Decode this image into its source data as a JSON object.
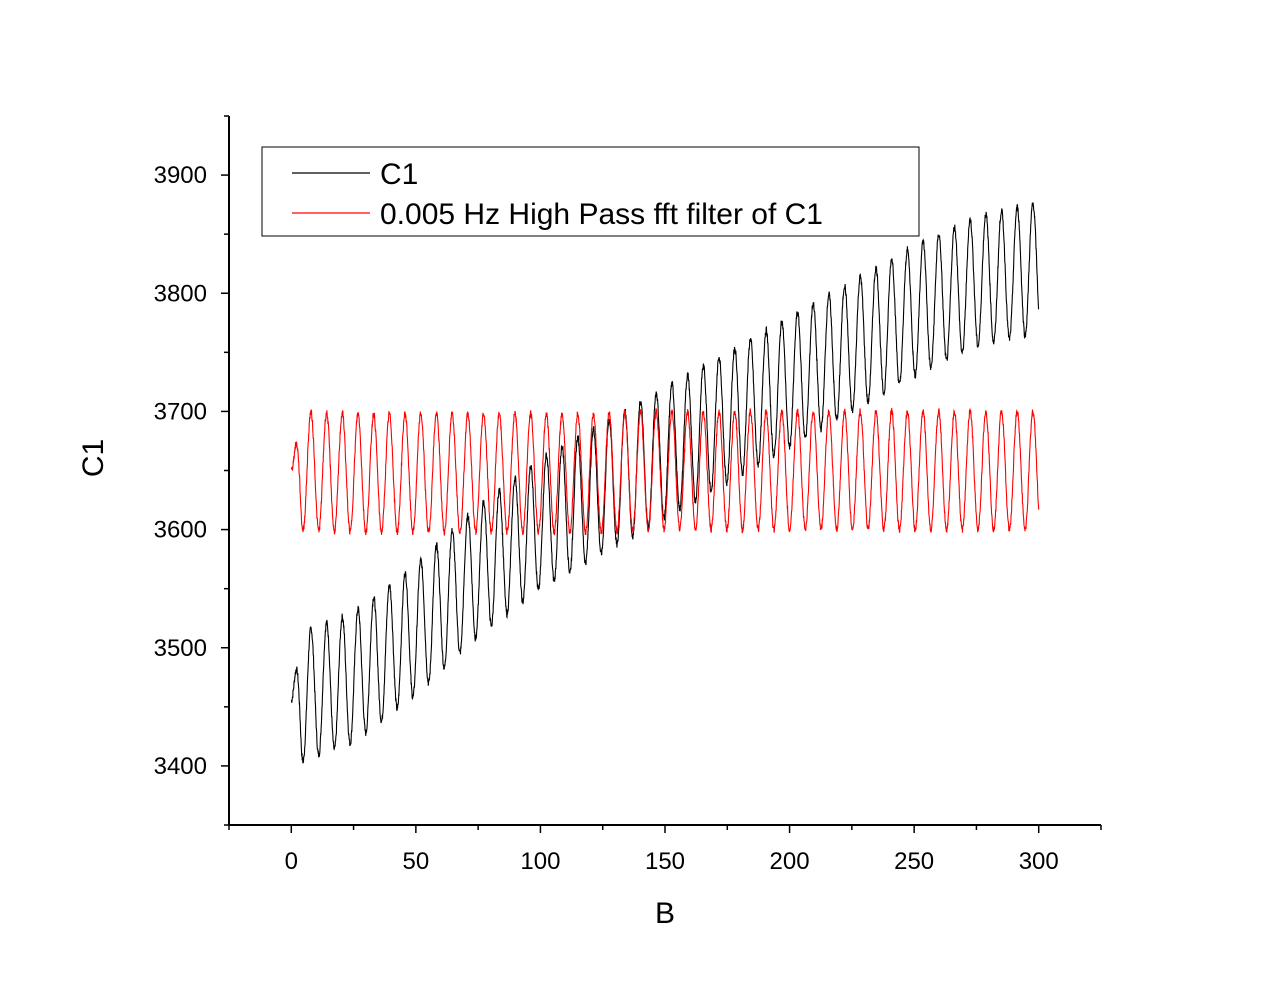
{
  "chart_data": {
    "type": "line",
    "xlabel": "B",
    "ylabel": "C1",
    "xlim": [
      -25,
      325
    ],
    "ylim": [
      3350,
      3950
    ],
    "x_ticks": [
      0,
      50,
      100,
      150,
      200,
      250,
      300
    ],
    "x_tick_labels": [
      "0",
      "50",
      "100",
      "150",
      "200",
      "250",
      "300"
    ],
    "y_ticks": [
      3400,
      3500,
      3600,
      3700,
      3800,
      3900
    ],
    "y_tick_labels": [
      "3400",
      "3500",
      "3600",
      "3700",
      "3800",
      "3900"
    ],
    "grid": false,
    "legend_position": "top-left",
    "x_range": [
      0,
      300
    ],
    "oscillation_period": 6.3,
    "series": [
      {
        "name": "C1",
        "color": "#000000",
        "baseline_x": [
          0,
          25,
          50,
          75,
          100,
          125,
          150,
          175,
          200,
          225,
          250,
          275,
          300
        ],
        "baseline_y": [
          3455,
          3475,
          3515,
          3565,
          3605,
          3635,
          3665,
          3695,
          3725,
          3755,
          3785,
          3810,
          3822
        ],
        "amplitude": 55
      },
      {
        "name": "0.005 Hz High Pass fft filter of C1",
        "color": "#ff0000",
        "baseline_x": [
          0,
          25,
          50,
          75,
          100,
          125,
          150,
          175,
          200,
          225,
          250,
          275,
          300
        ],
        "baseline_y": [
          3650,
          3648,
          3648,
          3648,
          3648,
          3648,
          3650,
          3650,
          3650,
          3650,
          3650,
          3650,
          3650
        ],
        "amplitude": 50
      }
    ]
  }
}
